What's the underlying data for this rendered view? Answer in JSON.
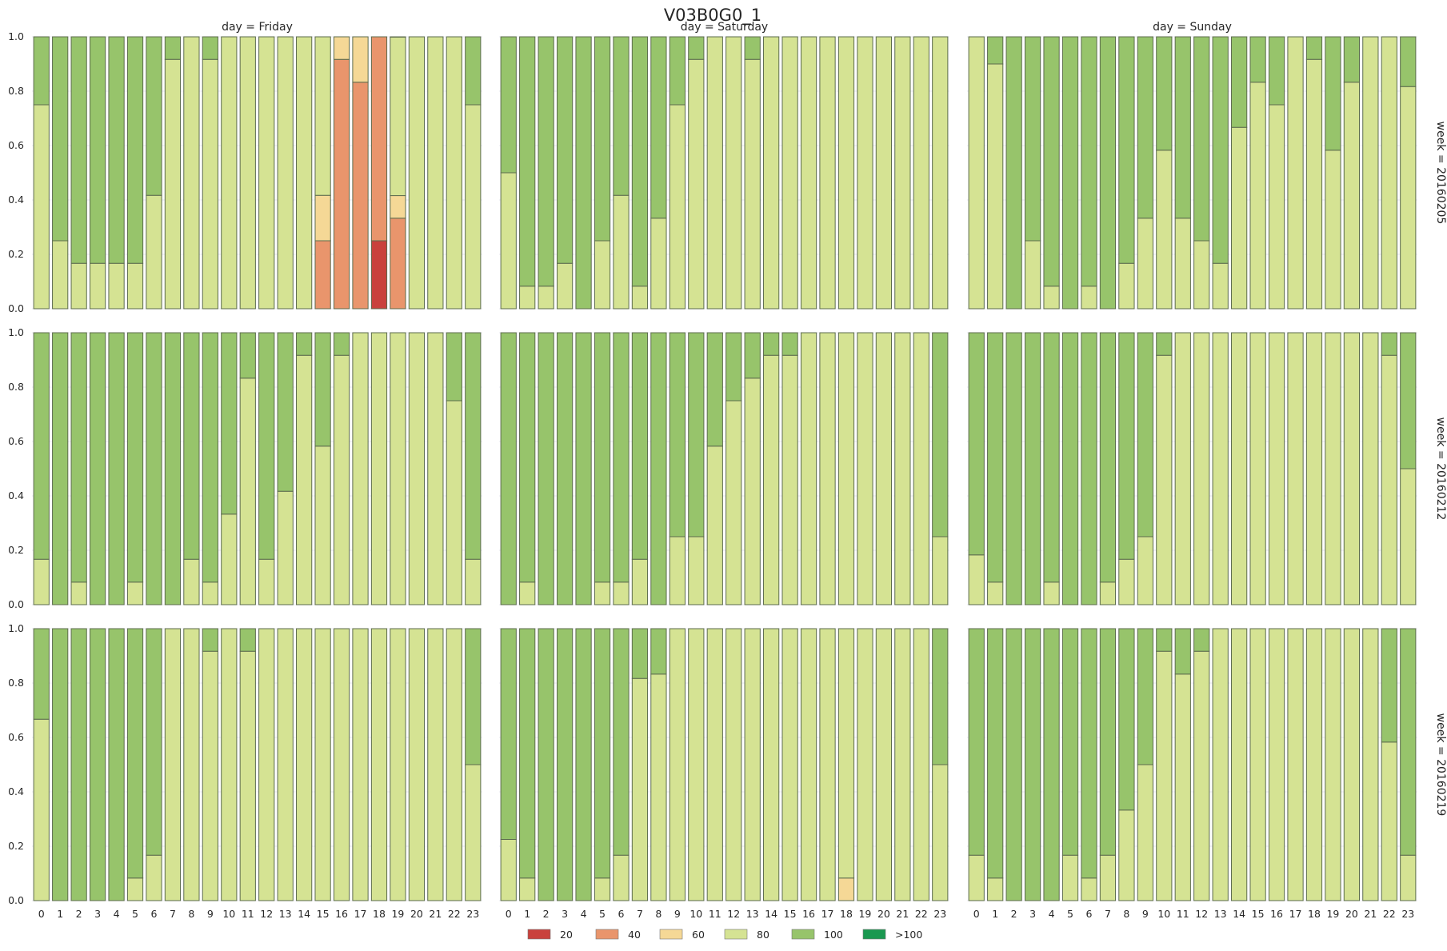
{
  "chart_data": {
    "type": "bar",
    "subtype": "stacked-proportion facet grid",
    "title": "V03B0G0_1",
    "columns": [
      {
        "label": "day = Friday",
        "day": "Friday"
      },
      {
        "label": "day = Saturday",
        "day": "Saturday"
      },
      {
        "label": "day = Sunday",
        "day": "Sunday"
      }
    ],
    "rows": [
      {
        "label": "week = 20160205",
        "week": "20160205"
      },
      {
        "label": "week = 20160212",
        "week": "20160212"
      },
      {
        "label": "week = 20160219",
        "week": "20160219"
      }
    ],
    "categories": [
      "0",
      "1",
      "2",
      "3",
      "4",
      "5",
      "6",
      "7",
      "8",
      "9",
      "10",
      "11",
      "12",
      "13",
      "14",
      "15",
      "16",
      "17",
      "18",
      "19",
      "20",
      "21",
      "22",
      "23"
    ],
    "yticks": [
      "0.0",
      "0.2",
      "0.4",
      "0.6",
      "0.8",
      "1.0"
    ],
    "ylim": [
      0,
      1
    ],
    "xlabel": "",
    "ylabel": "",
    "legend": {
      "placement": "bottom-center",
      "items": [
        {
          "label": "20",
          "color": "#d73027"
        },
        {
          "label": "40",
          "color": "#fc8d59"
        },
        {
          "label": "60",
          "color": "#fee08b"
        },
        {
          "label": "80",
          "color": "#d9ef8b"
        },
        {
          "label": "100",
          "color": "#91cf60"
        },
        {
          "label": ">100",
          "color": "#1a9850"
        }
      ]
    },
    "stack_order": [
      "20",
      "40",
      "60",
      "80",
      "100",
      ">100"
    ],
    "display_colors": {
      "20": "#c9413c",
      "40": "#e9956c",
      "60": "#f5d896",
      "80": "#d5e393",
      "100": "#97c46b",
      ">100": "#1a9850"
    },
    "note": "Each bar is a stack of fractions (bottom to top: 20, 40, 60, 80, 100). Remainder of each bar up to 1.0 is category 100.",
    "panels": [
      [
        {
          "c20": {
            "18": 0.25
          },
          "c40": {
            "15": 0.25,
            "16": 0.917,
            "17": 0.833,
            "18": 0.75,
            "19": 0.333
          },
          "c60": {
            "15": 0.167,
            "16": 0.083,
            "17": 0.167,
            "19": 0.083
          },
          "c80": [
            0.75,
            0.25,
            0.167,
            0.167,
            0.167,
            0.167,
            0.417,
            0.917,
            1,
            0.917,
            1,
            1,
            1,
            1,
            1,
            0.583,
            0,
            0,
            0,
            0.583,
            1,
            1,
            1,
            0.75
          ]
        },
        {
          "c80": [
            0.5,
            0.083,
            0.083,
            0.167,
            0,
            0.25,
            0.417,
            0.083,
            0.333,
            0.75,
            0.917,
            1,
            1,
            0.917,
            1,
            1,
            1,
            1,
            1,
            1,
            1,
            1,
            1,
            1
          ]
        },
        {
          "c80": [
            1,
            0.9,
            0,
            0.25,
            0.083,
            0,
            0.083,
            0,
            0.167,
            0.333,
            0.583,
            0.333,
            0.25,
            0.167,
            0.667,
            0.833,
            0.75,
            1,
            0.917,
            0.583,
            0.833,
            1,
            1,
            0.817
          ]
        }
      ],
      [
        {
          "c80": [
            0.167,
            0,
            0.083,
            0,
            0,
            0.083,
            0,
            0,
            0.167,
            0.083,
            0.333,
            0.833,
            0.167,
            0.417,
            0.917,
            0.583,
            0.917,
            1,
            1,
            1,
            1,
            1,
            0.75,
            0.167
          ]
        },
        {
          "c80": [
            0,
            0.083,
            0,
            0,
            0,
            0.083,
            0.083,
            0.167,
            0,
            0.25,
            0.25,
            0.583,
            0.75,
            0.833,
            0.917,
            0.917,
            1,
            1,
            1,
            1,
            1,
            1,
            1,
            0.25
          ]
        },
        {
          "c80": [
            0.183,
            0.083,
            0,
            0,
            0.083,
            0,
            0,
            0.083,
            0.167,
            0.25,
            0.917,
            1,
            1,
            1,
            1,
            1,
            1,
            1,
            1,
            1,
            1,
            1,
            0.917,
            0.5
          ]
        }
      ],
      [
        {
          "c80": [
            0.667,
            0,
            0,
            0,
            0,
            0.083,
            0.167,
            1,
            1,
            0.917,
            1,
            0.917,
            1,
            1,
            1,
            1,
            1,
            1,
            1,
            1,
            1,
            1,
            1,
            0.5
          ]
        },
        {
          "c60": {
            "18": 0.083
          },
          "c80": [
            0.225,
            0.083,
            0,
            0,
            0,
            0.083,
            0.167,
            0.817,
            0.833,
            1,
            1,
            1,
            1,
            1,
            1,
            1,
            1,
            1,
            0.917,
            1,
            1,
            1,
            1,
            0.5
          ]
        },
        {
          "c80": [
            0.167,
            0.083,
            0,
            0,
            0,
            0.167,
            0.083,
            0.167,
            0.333,
            0.5,
            0.917,
            0.833,
            0.917,
            1,
            1,
            1,
            1,
            1,
            1,
            1,
            1,
            1,
            0.583,
            0.167
          ]
        }
      ]
    ]
  }
}
